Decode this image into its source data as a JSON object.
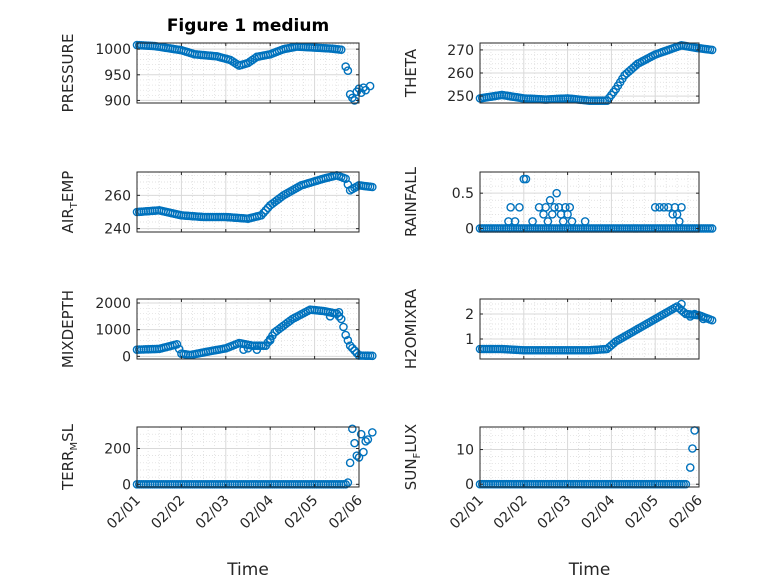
{
  "figure_title": "Figure 1 medium",
  "marker_color": "#0072BD",
  "grid_color": "#d9d9d9",
  "xlabel": "Time",
  "x_ticks": [
    "02/01",
    "02/02",
    "02/03",
    "02/04",
    "02/05",
    "02/06"
  ],
  "chart_data": [
    {
      "type": "scatter",
      "id": "pressure",
      "title": "Figure 1 medium",
      "ylabel": "PRESSURE",
      "ylim": [
        895,
        1012
      ],
      "yticks": [
        900,
        950,
        1000
      ],
      "show_x_ticks": false,
      "anchors": [
        [
          0.0,
          1008
        ],
        [
          0.4,
          1006
        ],
        [
          1.0,
          998
        ],
        [
          1.3,
          990
        ],
        [
          1.8,
          986
        ],
        [
          2.1,
          979
        ],
        [
          2.3,
          968
        ],
        [
          2.5,
          973
        ],
        [
          2.7,
          985
        ],
        [
          3.0,
          990
        ],
        [
          3.3,
          1000
        ],
        [
          3.6,
          1005
        ],
        [
          4.0,
          1003
        ],
        [
          4.4,
          1001
        ],
        [
          4.6,
          999
        ]
      ],
      "points": [
        [
          4.7,
          966
        ],
        [
          4.75,
          958
        ],
        [
          4.8,
          912
        ],
        [
          4.85,
          905
        ],
        [
          4.9,
          900
        ],
        [
          4.95,
          917
        ],
        [
          5.0,
          923
        ],
        [
          5.05,
          915
        ],
        [
          5.1,
          925
        ],
        [
          5.15,
          920
        ],
        [
          5.25,
          928
        ]
      ]
    },
    {
      "type": "scatter",
      "id": "theta",
      "title": "",
      "ylabel": "THETA",
      "ylim": [
        247,
        273
      ],
      "yticks": [
        250,
        260,
        270
      ],
      "show_x_ticks": false,
      "anchors": [
        [
          0.0,
          249
        ],
        [
          0.5,
          250.5
        ],
        [
          1.0,
          249
        ],
        [
          1.5,
          248.5
        ],
        [
          2.0,
          249
        ],
        [
          2.5,
          248
        ],
        [
          2.9,
          248
        ],
        [
          3.1,
          253
        ],
        [
          3.3,
          259
        ],
        [
          3.6,
          264
        ],
        [
          4.0,
          268
        ],
        [
          4.3,
          270
        ],
        [
          4.6,
          272
        ],
        [
          4.9,
          271
        ],
        [
          5.3,
          270
        ]
      ],
      "points": []
    },
    {
      "type": "scatter",
      "id": "air_temp",
      "title": "",
      "ylabel": "AIR_TEMP",
      "ylim": [
        238,
        274
      ],
      "yticks": [
        240,
        260
      ],
      "show_x_ticks": false,
      "anchors": [
        [
          0.0,
          250
        ],
        [
          0.5,
          251
        ],
        [
          1.0,
          248
        ],
        [
          1.5,
          247
        ],
        [
          2.0,
          247
        ],
        [
          2.5,
          246
        ],
        [
          2.8,
          248
        ],
        [
          3.0,
          254
        ],
        [
          3.3,
          260
        ],
        [
          3.7,
          266
        ],
        [
          4.2,
          270
        ],
        [
          4.5,
          272
        ],
        [
          4.7,
          270
        ],
        [
          4.8,
          263
        ],
        [
          5.0,
          266
        ],
        [
          5.3,
          265
        ]
      ],
      "points": []
    },
    {
      "type": "scatter",
      "id": "rainfall",
      "title": "",
      "ylabel": "RAINFALL",
      "ylim": [
        -0.05,
        0.8
      ],
      "yticks": [
        0,
        0.5
      ],
      "show_x_ticks": false,
      "anchors": [
        [
          0.0,
          0
        ],
        [
          5.3,
          0
        ]
      ],
      "points": [
        [
          0.65,
          0.1
        ],
        [
          0.7,
          0.3
        ],
        [
          0.8,
          0.1
        ],
        [
          0.9,
          0.3
        ],
        [
          1.0,
          0.7
        ],
        [
          1.05,
          0.7
        ],
        [
          1.2,
          0.1
        ],
        [
          1.35,
          0.3
        ],
        [
          1.45,
          0.2
        ],
        [
          1.5,
          0.3
        ],
        [
          1.55,
          0.1
        ],
        [
          1.6,
          0.4
        ],
        [
          1.65,
          0.2
        ],
        [
          1.7,
          0.3
        ],
        [
          1.75,
          0.5
        ],
        [
          1.8,
          0.3
        ],
        [
          1.85,
          0.2
        ],
        [
          1.9,
          0.1
        ],
        [
          1.95,
          0.3
        ],
        [
          2.0,
          0.2
        ],
        [
          2.05,
          0.3
        ],
        [
          2.1,
          0.1
        ],
        [
          2.4,
          0.1
        ],
        [
          4.0,
          0.3
        ],
        [
          4.1,
          0.3
        ],
        [
          4.2,
          0.3
        ],
        [
          4.3,
          0.3
        ],
        [
          4.4,
          0.2
        ],
        [
          4.45,
          0.3
        ],
        [
          4.5,
          0.2
        ],
        [
          4.55,
          0.1
        ],
        [
          4.6,
          0.3
        ]
      ]
    },
    {
      "type": "scatter",
      "id": "mixdepth",
      "title": "",
      "ylabel": "MIXDEPTH",
      "ylim": [
        -100,
        2150
      ],
      "yticks": [
        0,
        1000,
        2000
      ],
      "show_x_ticks": false,
      "anchors": [
        [
          0.0,
          250
        ],
        [
          0.5,
          280
        ],
        [
          0.9,
          450
        ],
        [
          1.0,
          100
        ],
        [
          1.2,
          50
        ],
        [
          1.6,
          180
        ],
        [
          2.0,
          300
        ],
        [
          2.3,
          500
        ],
        [
          2.6,
          400
        ],
        [
          2.9,
          400
        ],
        [
          3.1,
          900
        ],
        [
          3.5,
          1400
        ],
        [
          3.9,
          1750
        ],
        [
          4.2,
          1700
        ],
        [
          4.5,
          1600
        ],
        [
          4.6,
          1400
        ],
        [
          4.7,
          800
        ],
        [
          4.8,
          400
        ],
        [
          5.0,
          30
        ],
        [
          5.3,
          20
        ]
      ],
      "points": [
        [
          2.4,
          250
        ],
        [
          2.5,
          300
        ],
        [
          2.7,
          250
        ],
        [
          3.0,
          600
        ],
        [
          4.35,
          1500
        ],
        [
          4.55,
          1650
        ]
      ]
    },
    {
      "type": "scatter",
      "id": "h2omixra",
      "title": "",
      "ylabel": "H2OMIXRA",
      "ylim": [
        0.2,
        2.6
      ],
      "yticks": [
        1,
        2
      ],
      "show_x_ticks": false,
      "anchors": [
        [
          0.0,
          0.6
        ],
        [
          0.5,
          0.6
        ],
        [
          1.0,
          0.55
        ],
        [
          1.5,
          0.55
        ],
        [
          2.0,
          0.55
        ],
        [
          2.5,
          0.55
        ],
        [
          2.9,
          0.6
        ],
        [
          3.1,
          0.9
        ],
        [
          3.4,
          1.2
        ],
        [
          3.8,
          1.6
        ],
        [
          4.2,
          2.0
        ],
        [
          4.5,
          2.3
        ],
        [
          4.7,
          2.0
        ],
        [
          5.0,
          1.95
        ],
        [
          5.3,
          1.75
        ]
      ],
      "points": [
        [
          4.6,
          2.4
        ],
        [
          4.8,
          1.9
        ],
        [
          4.9,
          2.0
        ],
        [
          5.1,
          1.8
        ]
      ]
    },
    {
      "type": "scatter",
      "id": "terr_msl",
      "title": "",
      "ylabel": "TERR_MSL",
      "ylim": [
        -15,
        320
      ],
      "yticks": [
        0,
        200
      ],
      "show_x_ticks": true,
      "anchors": [
        [
          0.0,
          0
        ],
        [
          4.7,
          0
        ]
      ],
      "points": [
        [
          4.75,
          10
        ],
        [
          4.8,
          120
        ],
        [
          4.85,
          310
        ],
        [
          4.9,
          230
        ],
        [
          4.95,
          160
        ],
        [
          5.0,
          150
        ],
        [
          5.05,
          280
        ],
        [
          5.1,
          180
        ],
        [
          5.15,
          240
        ],
        [
          5.2,
          250
        ],
        [
          5.3,
          290
        ]
      ]
    },
    {
      "type": "scatter",
      "id": "sun_flux",
      "title": "",
      "ylabel": "SUN_FLUX",
      "ylim": [
        -0.8,
        16.5
      ],
      "yticks": [
        0,
        10
      ],
      "show_x_ticks": true,
      "anchors": [
        [
          0.0,
          0
        ],
        [
          4.7,
          0
        ]
      ],
      "points": [
        [
          4.8,
          4.8
        ],
        [
          4.85,
          10.3
        ],
        [
          4.9,
          15.5
        ]
      ]
    }
  ]
}
